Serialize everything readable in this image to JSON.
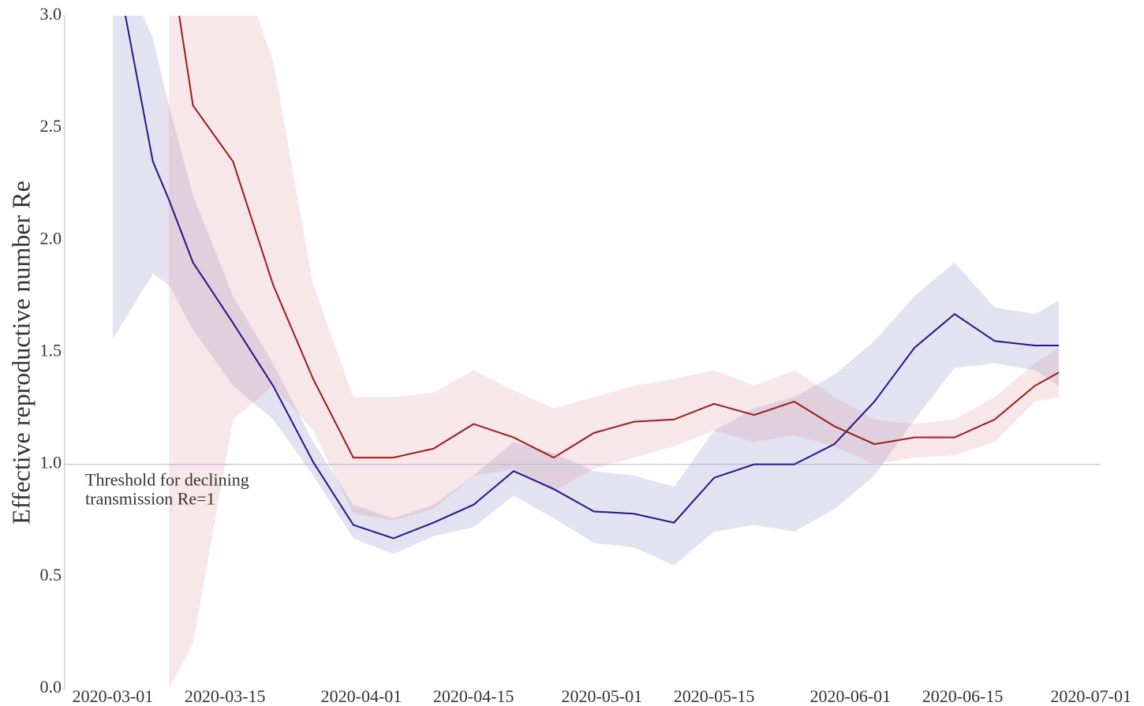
{
  "chart_data": {
    "type": "line",
    "ylabel": "Effective reproductive number Re",
    "x": [
      "2020-03-01",
      "2020-03-06",
      "2020-03-08",
      "2020-03-11",
      "2020-03-16",
      "2020-03-21",
      "2020-03-26",
      "2020-03-31",
      "2020-04-05",
      "2020-04-10",
      "2020-04-15",
      "2020-04-20",
      "2020-04-25",
      "2020-04-30",
      "2020-05-05",
      "2020-05-10",
      "2020-05-15",
      "2020-05-20",
      "2020-05-25",
      "2020-05-30",
      "2020-06-04",
      "2020-06-09",
      "2020-06-14",
      "2020-06-19",
      "2020-06-24",
      "2020-06-27"
    ],
    "series": [
      {
        "color": "#2a1488",
        "band_color": "#5a55a8",
        "values": [
          3.3,
          2.35,
          2.18,
          1.9,
          1.63,
          1.35,
          1.01,
          0.73,
          0.67,
          0.74,
          0.82,
          0.97,
          0.89,
          0.79,
          0.78,
          0.74,
          0.94,
          1.0,
          1.0,
          1.09,
          1.28,
          1.52,
          1.67,
          1.55,
          1.53,
          1.53
        ],
        "lower": [
          1.56,
          1.85,
          1.8,
          1.6,
          1.35,
          1.2,
          0.95,
          0.67,
          0.6,
          0.68,
          0.72,
          0.86,
          0.76,
          0.65,
          0.63,
          0.55,
          0.7,
          0.73,
          0.7,
          0.8,
          0.95,
          1.2,
          1.43,
          1.45,
          1.42,
          1.35
        ],
        "upper": [
          3.3,
          2.9,
          2.6,
          2.2,
          1.75,
          1.45,
          1.1,
          0.82,
          0.76,
          0.82,
          0.95,
          1.1,
          1.05,
          0.97,
          0.95,
          0.9,
          1.15,
          1.25,
          1.3,
          1.4,
          1.55,
          1.75,
          1.9,
          1.7,
          1.67,
          1.73
        ]
      },
      {
        "color": "#9e1a1a",
        "band_color": "#d4707e",
        "values": [
          null,
          null,
          3.3,
          2.6,
          2.35,
          1.8,
          1.38,
          1.03,
          1.03,
          1.07,
          1.18,
          1.12,
          1.03,
          1.14,
          1.19,
          1.2,
          1.27,
          1.22,
          1.28,
          1.17,
          1.09,
          1.12,
          1.12,
          1.2,
          1.35,
          1.41
        ],
        "lower": [
          null,
          null,
          0.0,
          0.2,
          1.2,
          1.35,
          1.15,
          0.78,
          0.75,
          0.8,
          0.95,
          0.98,
          0.88,
          0.98,
          1.03,
          1.08,
          1.15,
          1.1,
          1.13,
          1.08,
          1.0,
          1.03,
          1.04,
          1.1,
          1.28,
          1.3
        ],
        "upper": [
          null,
          null,
          3.3,
          3.3,
          3.3,
          2.8,
          1.8,
          1.3,
          1.3,
          1.32,
          1.42,
          1.33,
          1.25,
          1.3,
          1.35,
          1.38,
          1.42,
          1.35,
          1.42,
          1.3,
          1.2,
          1.18,
          1.2,
          1.3,
          1.45,
          1.52
        ]
      }
    ],
    "threshold": {
      "value": 1,
      "color": "#b8bccc",
      "text": [
        "Threshold for declining",
        "transmission Re=1"
      ]
    },
    "xlim": [
      "2020-02-24",
      "2020-07-03"
    ],
    "xticks": [
      "2020-03-01",
      "2020-03-15",
      "2020-04-01",
      "2020-04-15",
      "2020-05-01",
      "2020-05-15",
      "2020-06-01",
      "2020-06-15",
      "2020-07-01"
    ],
    "ylim": [
      0,
      3
    ],
    "yticks": [
      {
        "value": 0,
        "label": "0.0"
      },
      0.5,
      {
        "value": 1,
        "label": "1.0"
      },
      1.5,
      {
        "value": 2,
        "label": "2.0"
      },
      2.5,
      {
        "value": 3,
        "label": "3.0"
      }
    ]
  }
}
